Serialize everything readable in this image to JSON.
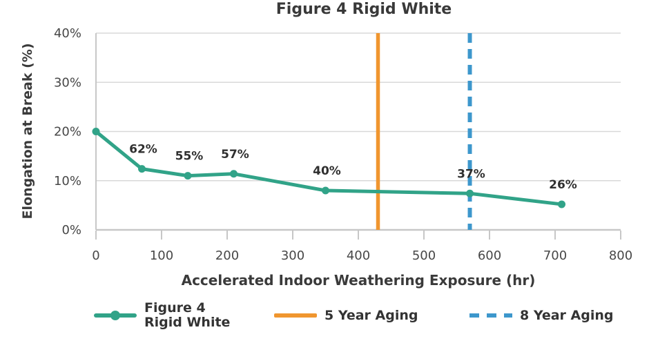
{
  "chart_data": {
    "type": "line",
    "title": "Figure 4 Rigid White",
    "xlabel": "Accelerated Indoor Weathering Exposure (hr)",
    "ylabel": "Elongation at Break (%)",
    "xlim": [
      0,
      800
    ],
    "ylim": [
      0,
      40
    ],
    "x_ticks": [
      0,
      100,
      200,
      300,
      400,
      500,
      600,
      700,
      800
    ],
    "y_tick_values": [
      0,
      10,
      20,
      30,
      40
    ],
    "y_tick_labels": [
      "0%",
      "10%",
      "20%",
      "30%",
      "40%"
    ],
    "grid": true,
    "legend_position": "bottom",
    "series": [
      {
        "name": "Figure 4 Rigid White",
        "color": "#31A388",
        "marker": "circle",
        "x": [
          0,
          70,
          140,
          210,
          350,
          570,
          710
        ],
        "y": [
          20,
          12.4,
          11,
          11.4,
          8,
          7.4,
          5.2
        ],
        "point_labels": [
          "",
          "62%",
          "55%",
          "57%",
          "40%",
          "37%",
          "26%"
        ]
      }
    ],
    "vlines": [
      {
        "name": "5 Year Aging",
        "x": 430,
        "color": "#F0962F",
        "style": "solid"
      },
      {
        "name": "8 Year Aging",
        "x": 570,
        "color": "#3D97CC",
        "style": "dashed"
      }
    ]
  },
  "legend": {
    "series_line1": "Figure 4",
    "series_line2": "Rigid White"
  },
  "colors": {
    "gridline": "#D8D8D8",
    "axis_line": "#C7C7C7",
    "tick_text": "#474747",
    "title_text": "#393939",
    "point_label_text": "#2F2F2F"
  }
}
